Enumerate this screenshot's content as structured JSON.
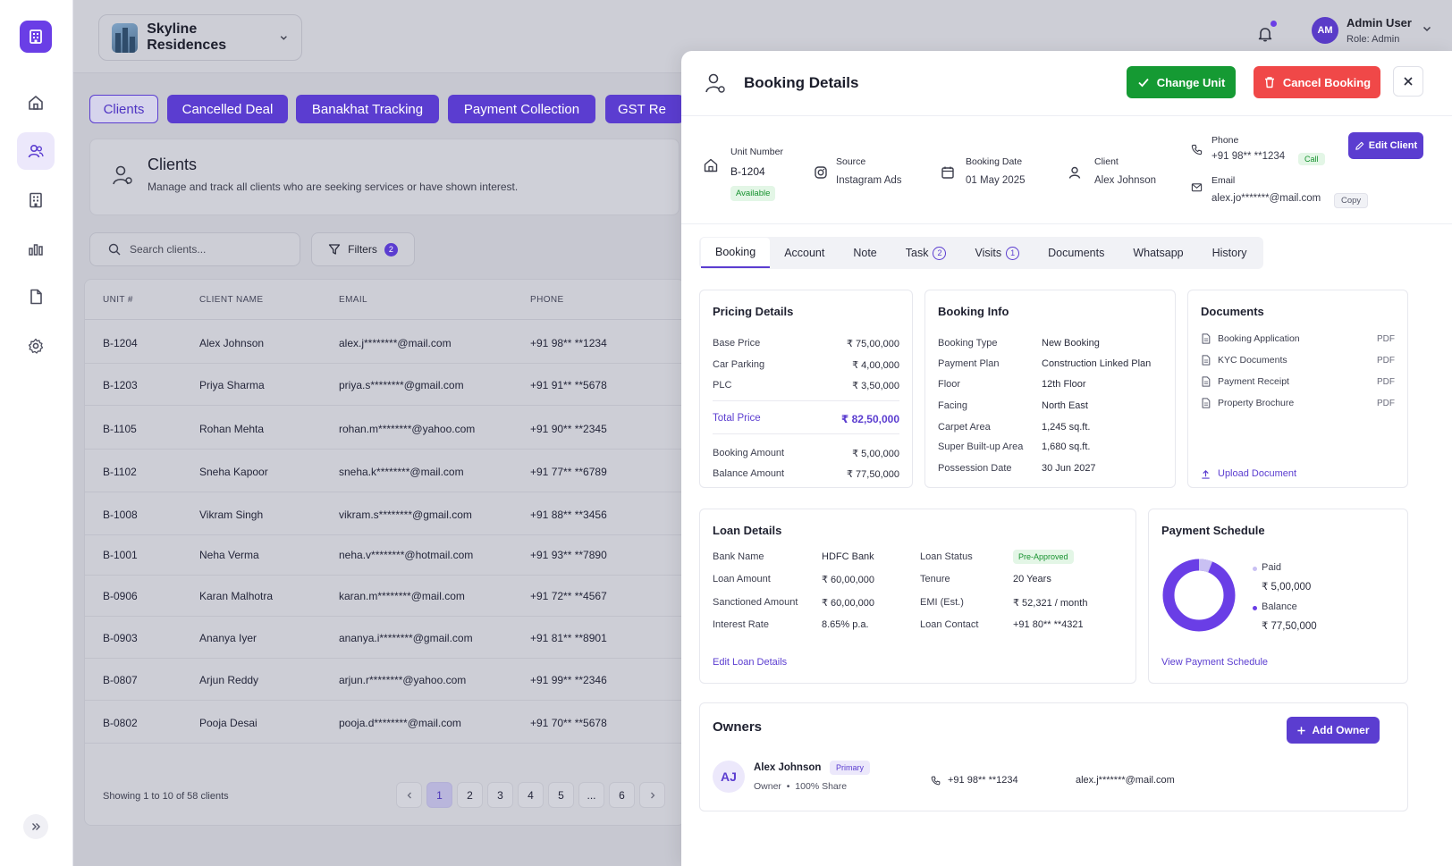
{
  "header": {
    "project_name": "Skyline Residences",
    "user_initials": "AM",
    "user_name": "Admin User",
    "user_role": "Role: Admin"
  },
  "sidebar": {
    "icons": [
      "home-icon",
      "users-icon",
      "building-icon",
      "bar-chart-icon",
      "document-icon",
      "gear-icon"
    ],
    "active_index": 1
  },
  "module_tabs": [
    {
      "label": "Clients",
      "active": true
    },
    {
      "label": "Cancelled Deal",
      "active": false
    },
    {
      "label": "Banakhat Tracking",
      "active": false
    },
    {
      "label": "Payment Collection",
      "active": false
    },
    {
      "label": "GST Re",
      "active": false
    }
  ],
  "clients_page": {
    "title": "Clients",
    "subtitle": "Manage and track all clients who are seeking services or have shown interest.",
    "search_placeholder": "Search clients...",
    "filters_label": "Filters",
    "filters_count": "2",
    "columns": [
      "UNIT #",
      "CLIENT NAME",
      "EMAIL",
      "PHONE"
    ],
    "rows": [
      {
        "unit": "B-1204",
        "name": "Alex Johnson",
        "email": "alex.j********@mail.com",
        "phone": "+91 98** **1234"
      },
      {
        "unit": "B-1203",
        "name": "Priya Sharma",
        "email": "priya.s********@gmail.com",
        "phone": "+91 91** **5678"
      },
      {
        "unit": "B-1105",
        "name": "Rohan Mehta",
        "email": "rohan.m********@yahoo.com",
        "phone": "+91 90** **2345"
      },
      {
        "unit": "B-1102",
        "name": "Sneha Kapoor",
        "email": "sneha.k********@mail.com",
        "phone": "+91 77** **6789"
      },
      {
        "unit": "B-1008",
        "name": "Vikram Singh",
        "email": "vikram.s********@gmail.com",
        "phone": "+91 88** **3456"
      },
      {
        "unit": "B-1001",
        "name": "Neha Verma",
        "email": "neha.v********@hotmail.com",
        "phone": "+91 93** **7890"
      },
      {
        "unit": "B-0906",
        "name": "Karan Malhotra",
        "email": "karan.m********@mail.com",
        "phone": "+91 72** **4567"
      },
      {
        "unit": "B-0903",
        "name": "Ananya Iyer",
        "email": "ananya.i********@gmail.com",
        "phone": "+91 81** **8901"
      },
      {
        "unit": "B-0807",
        "name": "Arjun Reddy",
        "email": "arjun.r********@yahoo.com",
        "phone": "+91 99** **2346"
      },
      {
        "unit": "B-0802",
        "name": "Pooja Desai",
        "email": "pooja.d********@mail.com",
        "phone": "+91 70** **5678"
      }
    ],
    "showing_text": "Showing 1 to 10 of 58 clients",
    "pages": [
      "1",
      "2",
      "3",
      "4",
      "5",
      "...",
      "6"
    ],
    "current_page": "1"
  },
  "panel": {
    "title": "Booking Details",
    "change_unit_label": "Change Unit",
    "cancel_booking_label": "Cancel Booking",
    "edit_client_label": "Edit Client",
    "info": {
      "unit_label": "Unit Number",
      "unit_value": "B-1204",
      "unit_status": "Available",
      "source_label": "Source",
      "source_value": "Instagram Ads",
      "date_label": "Booking Date",
      "date_value": "01 May 2025",
      "client_label": "Client",
      "client_value": "Alex Johnson",
      "phone_label": "Phone",
      "phone_value": "+91 98** **1234",
      "call_label": "Call",
      "email_label": "Email",
      "email_value": "alex.jo*******@mail.com",
      "copy_label": "Copy"
    },
    "tabs": [
      {
        "label": "Booking",
        "count": "",
        "active": true
      },
      {
        "label": "Account",
        "count": ""
      },
      {
        "label": "Note",
        "count": ""
      },
      {
        "label": "Task",
        "count": "2"
      },
      {
        "label": "Visits",
        "count": "1"
      },
      {
        "label": "Documents",
        "count": ""
      },
      {
        "label": "Whatsapp",
        "count": ""
      },
      {
        "label": "History",
        "count": ""
      }
    ],
    "pricing": {
      "title": "Pricing Details",
      "rows": [
        {
          "label": "Base Price",
          "value": "₹ 75,00,000"
        },
        {
          "label": "Car Parking",
          "value": "₹ 4,00,000"
        },
        {
          "label": "PLC",
          "value": "₹ 3,50,000"
        }
      ],
      "total_label": "Total Price",
      "total_value": "₹ 82,50,000",
      "booking_amount_label": "Booking Amount",
      "booking_amount_value": "₹ 5,00,000",
      "balance_amount_label": "Balance Amount",
      "balance_amount_value": "₹ 77,50,000"
    },
    "booking_info": {
      "title": "Booking Info",
      "rows": [
        {
          "label": "Booking Type",
          "value": "New Booking"
        },
        {
          "label": "Payment Plan",
          "value": "Construction Linked Plan"
        },
        {
          "label": "Floor",
          "value": "12th Floor"
        },
        {
          "label": "Facing",
          "value": "North East"
        },
        {
          "label": "Carpet Area",
          "value": "1,245 sq.ft."
        },
        {
          "label": "Super Built-up Area",
          "value": "1,680 sq.ft."
        },
        {
          "label": "Possession Date",
          "value": "30 Jun 2027"
        }
      ]
    },
    "documents": {
      "title": "Documents",
      "items": [
        {
          "name": "Booking Application",
          "type": "PDF"
        },
        {
          "name": "KYC Documents",
          "type": "PDF"
        },
        {
          "name": "Payment Receipt",
          "type": "PDF"
        },
        {
          "name": "Property Brochure",
          "type": "PDF"
        }
      ],
      "upload_label": "Upload Document"
    },
    "loan": {
      "title": "Loan Details",
      "left": [
        {
          "label": "Bank Name",
          "value": "HDFC Bank"
        },
        {
          "label": "Loan Amount",
          "value": "₹ 60,00,000"
        },
        {
          "label": "Sanctioned Amount",
          "value": "₹ 60,00,000"
        },
        {
          "label": "Interest Rate",
          "value": "8.65% p.a."
        }
      ],
      "right": [
        {
          "label": "Loan Status",
          "value": "Pre-Approved"
        },
        {
          "label": "Tenure",
          "value": "20 Years"
        },
        {
          "label": "EMI (Est.)",
          "value": "₹ 52,321 / month"
        },
        {
          "label": "Loan Contact",
          "value": "+91 80** **4321"
        }
      ],
      "edit_label": "Edit Loan Details"
    },
    "payment_schedule": {
      "title": "Payment Schedule",
      "paid_label": "Paid",
      "paid_value": "₹ 5,00,000",
      "balance_label": "Balance",
      "balance_value": "₹ 77,50,000",
      "paid_fraction": 0.0606,
      "view_label": "View Payment Schedule",
      "colors": {
        "paid": "#c9c0f3",
        "balance": "#6a3ee6"
      }
    },
    "owners": {
      "title": "Owners",
      "add_label": "Add Owner",
      "list": [
        {
          "initials": "AJ",
          "name": "Alex Johnson",
          "tag": "Primary",
          "role": "Owner",
          "share": "100% Share",
          "phone": "+91 98** **1234",
          "email": "alex.j*******@mail.com"
        }
      ]
    }
  }
}
